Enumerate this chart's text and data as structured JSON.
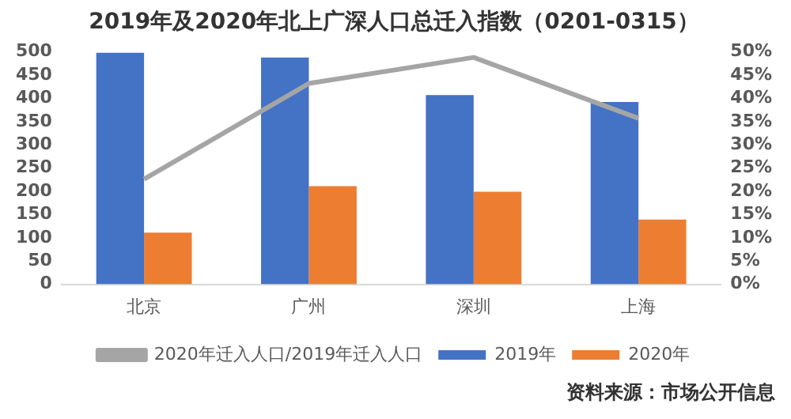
{
  "chart_data": {
    "type": "bar",
    "title": "2019年及2020年北上广深人口总迁入指数（0201-0315）",
    "categories": [
      "北京",
      "广州",
      "深圳",
      "上海"
    ],
    "series": [
      {
        "name": "2019年",
        "color": "#4472c4",
        "values": [
          498,
          488,
          407,
          392
        ]
      },
      {
        "name": "2020年",
        "color": "#ed7d31",
        "values": [
          111,
          211,
          199,
          139
        ]
      },
      {
        "name": "2020年迁入人口/2019年迁入人口",
        "type": "line",
        "axis": "y2",
        "color": "#a5a5a5",
        "values": [
          22.6,
          43.2,
          48.8,
          35.7
        ]
      }
    ],
    "ylim": [
      0,
      500
    ],
    "yticks": [
      0,
      50,
      100,
      150,
      200,
      250,
      300,
      350,
      400,
      450,
      500
    ],
    "y2lim": [
      0,
      50
    ],
    "y2ticks": [
      {
        "value": 0,
        "label": "0%"
      },
      {
        "value": 5,
        "label": "5%"
      },
      {
        "value": 10,
        "label": "10%"
      },
      {
        "value": 15,
        "label": "15%"
      },
      {
        "value": 20,
        "label": "20%"
      },
      {
        "value": 25,
        "label": "25%"
      },
      {
        "value": 30,
        "label": "30%"
      },
      {
        "value": 35,
        "label": "35%"
      },
      {
        "value": 40,
        "label": "40%"
      },
      {
        "value": 45,
        "label": "45%"
      },
      {
        "value": 50,
        "label": "50%"
      }
    ],
    "grid": false,
    "legend": "bottom",
    "marker": "none",
    "line_style": "solid",
    "annotations": [
      "资料来源：市场公开信息"
    ]
  }
}
